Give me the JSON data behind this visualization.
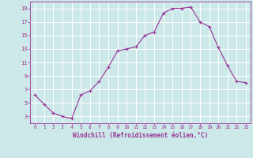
{
  "x": [
    0,
    1,
    2,
    3,
    4,
    5,
    6,
    7,
    8,
    9,
    10,
    11,
    12,
    13,
    14,
    15,
    16,
    17,
    18,
    19,
    20,
    21,
    22,
    23
  ],
  "y": [
    6.2,
    4.8,
    3.5,
    3.0,
    2.7,
    6.2,
    6.8,
    8.2,
    10.3,
    12.7,
    13.0,
    13.3,
    15.0,
    15.5,
    18.3,
    19.0,
    19.0,
    19.2,
    17.0,
    16.3,
    13.2,
    10.5,
    8.2,
    8.0
  ],
  "line_color": "#993399",
  "marker": "+",
  "marker_color": "#993399",
  "bg_color": "#cce8e8",
  "grid_color": "#ffffff",
  "xlabel": "Windchill (Refroidissement éolien,°C)",
  "xlabel_color": "#993399",
  "tick_color": "#993399",
  "xlim": [
    -0.5,
    23.5
  ],
  "ylim": [
    2.0,
    20.0
  ],
  "yticks": [
    3,
    5,
    7,
    9,
    11,
    13,
    15,
    17,
    19
  ],
  "xticks": [
    0,
    1,
    2,
    3,
    4,
    5,
    6,
    7,
    8,
    9,
    10,
    11,
    12,
    13,
    14,
    15,
    16,
    17,
    18,
    19,
    20,
    21,
    22,
    23
  ],
  "figsize": [
    3.2,
    2.0
  ],
  "dpi": 100
}
